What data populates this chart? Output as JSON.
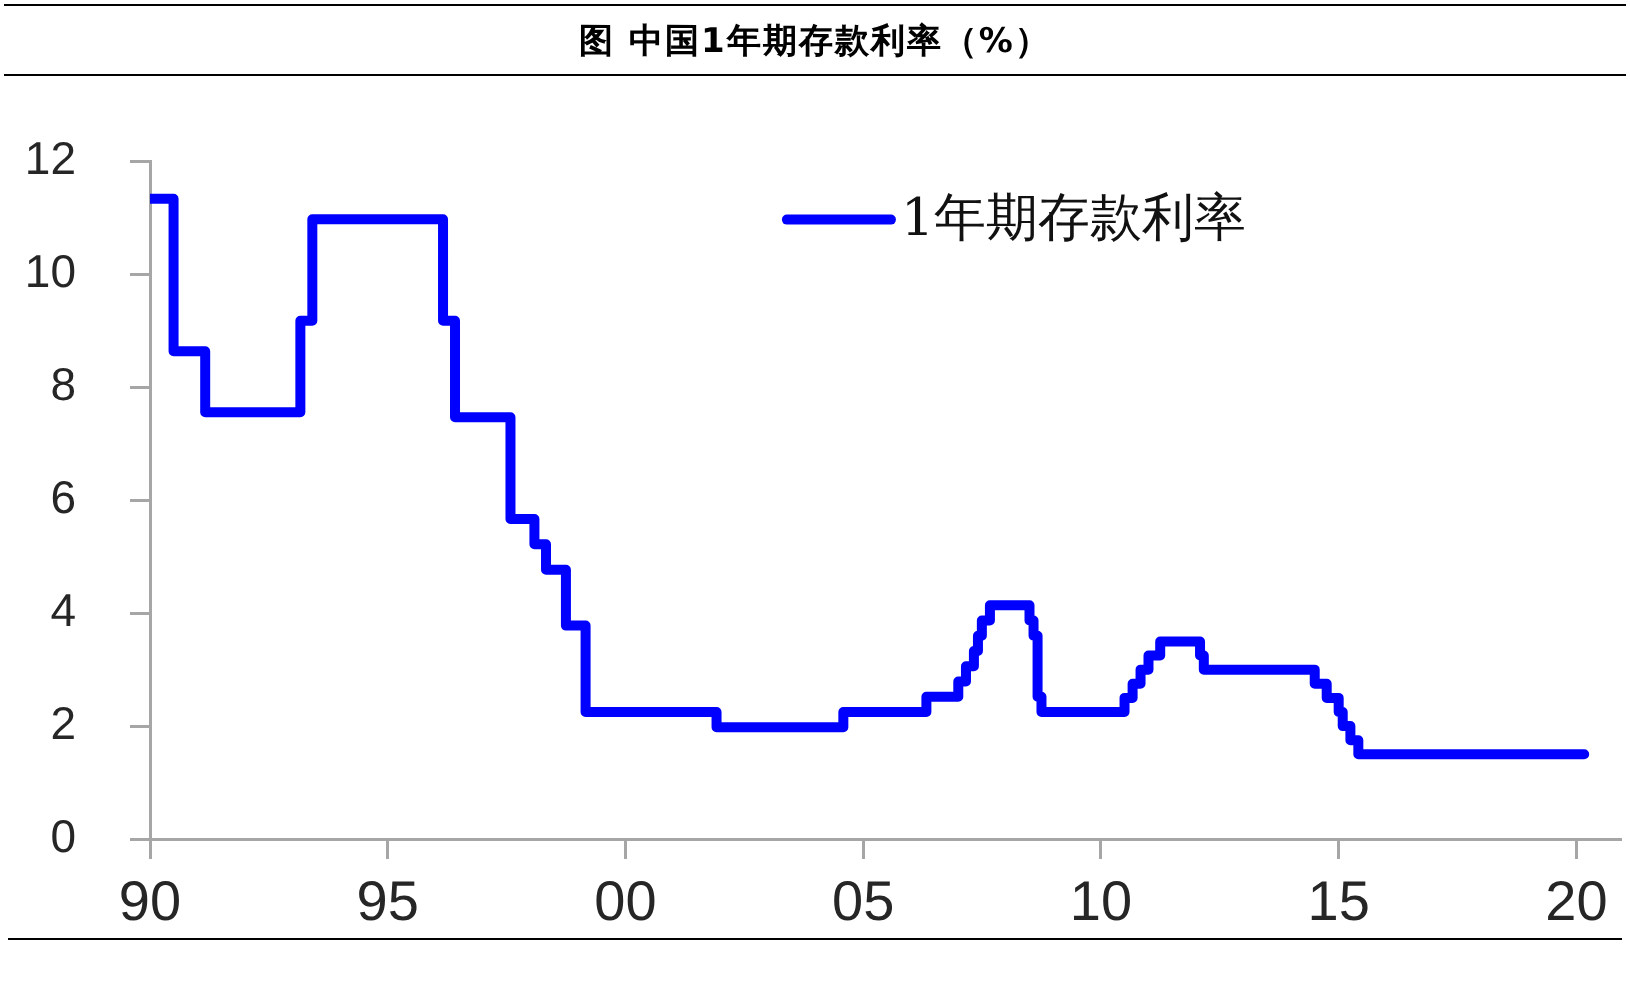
{
  "chart_data": {
    "type": "step",
    "title": "图 中国1年期存款利率（%）",
    "x": [
      "1990-01",
      "1990-07",
      "1991-03",
      "1993-03",
      "1993-06",
      "1996-03",
      "1996-06",
      "1997-08",
      "1998-02",
      "1998-05",
      "1998-10",
      "1999-03",
      "2001-12",
      "2004-08",
      "2006-05",
      "2007-01",
      "2007-03",
      "2007-05",
      "2007-06",
      "2007-07",
      "2007-09",
      "2008-07",
      "2008-08",
      "2008-09",
      "2008-10",
      "2010-07",
      "2010-09",
      "2010-11",
      "2011-01",
      "2011-04",
      "2012-02",
      "2012-03",
      "2014-07",
      "2014-10",
      "2015-01",
      "2015-02",
      "2015-04",
      "2015-06",
      "2020-03"
    ],
    "series": [
      {
        "name": "1年期存款利率",
        "color": "#0000ff",
        "values": [
          11.34,
          8.64,
          7.56,
          9.18,
          10.98,
          9.18,
          7.47,
          5.67,
          5.22,
          4.77,
          3.78,
          2.25,
          1.98,
          2.25,
          2.52,
          2.79,
          3.06,
          3.33,
          3.6,
          3.87,
          4.14,
          3.87,
          3.6,
          2.52,
          2.25,
          2.5,
          2.75,
          3,
          3.25,
          3.5,
          3.25,
          3,
          2.75,
          2.5,
          2.25,
          2,
          1.75,
          1.5,
          1.5
        ]
      }
    ],
    "xlim": [
      "1990-01",
      "2020-12"
    ],
    "xticks": [
      {
        "value": "1990",
        "label": "90"
      },
      {
        "value": "1995",
        "label": "95"
      },
      {
        "value": "2000",
        "label": "00"
      },
      {
        "value": "2005",
        "label": "05"
      },
      {
        "value": "2010",
        "label": "10"
      },
      {
        "value": "2015",
        "label": "15"
      },
      {
        "value": "2020",
        "label": "20"
      }
    ],
    "ylim": [
      0,
      12
    ],
    "yticks": [
      0,
      2,
      4,
      6,
      8,
      10,
      12
    ],
    "legend": "top right"
  }
}
